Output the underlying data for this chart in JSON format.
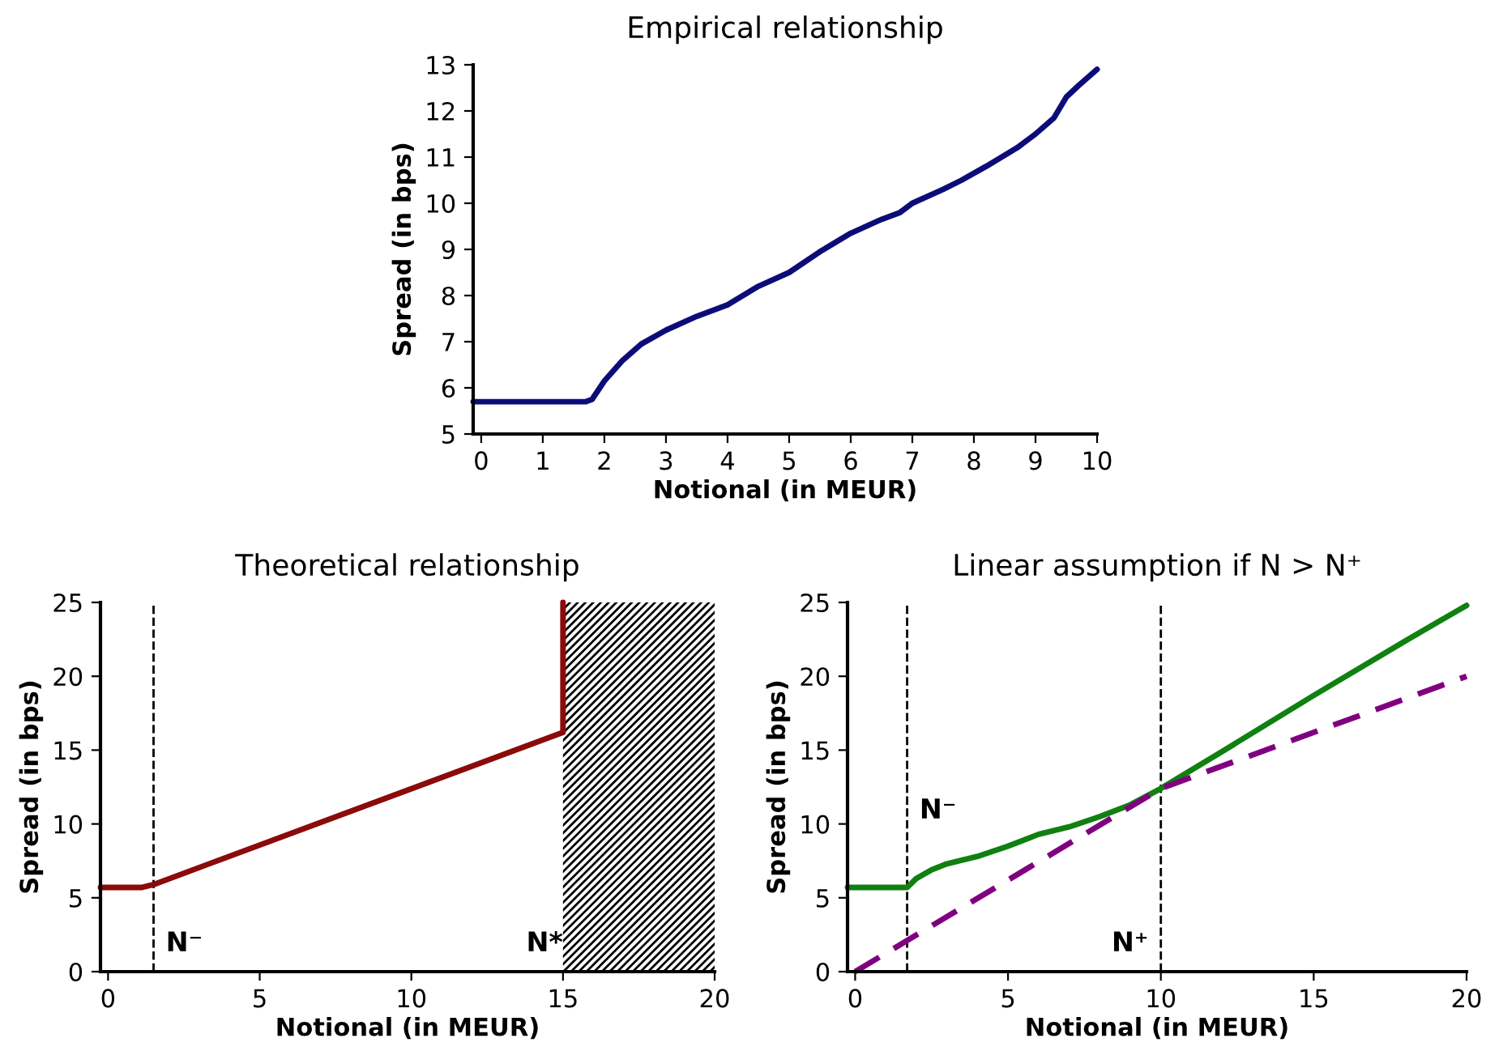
{
  "chart_data": [
    {
      "type": "line",
      "title": "Empirical relationship",
      "xlabel": "Notional (in MEUR)",
      "ylabel": "Spread (in bps)",
      "xlim": [
        -0.13,
        10
      ],
      "xticks": [
        0,
        1,
        2,
        3,
        4,
        5,
        6,
        7,
        8,
        9,
        10
      ],
      "ylim": [
        5,
        13
      ],
      "yticks": [
        5,
        6,
        7,
        8,
        9,
        10,
        11,
        12,
        13
      ],
      "grid": false,
      "series": [
        {
          "color": "#0c0c78",
          "x": [
            -0.13,
            1.7,
            1.8,
            2,
            2.3,
            2.6,
            3,
            3.5,
            4,
            4.5,
            5,
            5.5,
            6,
            6.5,
            6.8,
            7,
            7.5,
            7.8,
            8.2,
            8.7,
            9,
            9.3,
            9.5,
            9.7,
            10
          ],
          "values": [
            5.7,
            5.7,
            5.75,
            6.15,
            6.6,
            6.95,
            7.25,
            7.55,
            7.8,
            8.2,
            8.5,
            8.95,
            9.35,
            9.65,
            9.8,
            10.0,
            10.3,
            10.5,
            10.8,
            11.2,
            11.5,
            11.85,
            12.3,
            12.55,
            12.9
          ]
        }
      ]
    },
    {
      "type": "line",
      "title": "Theoretical relationship",
      "xlabel": "Notional (in MEUR)",
      "ylabel": "Spread (in bps)",
      "xlim": [
        -0.25,
        20
      ],
      "xticks": [
        0,
        5,
        10,
        15,
        20
      ],
      "ylim": [
        0,
        25
      ],
      "yticks": [
        0,
        5,
        10,
        15,
        20,
        25
      ],
      "grid": false,
      "ref_lines": [
        {
          "axis": "x",
          "value": 1.5,
          "label": "N⁻",
          "color": "#000000",
          "line_style": "dashed"
        }
      ],
      "bands": [
        {
          "axis": "x",
          "from": 15,
          "to": 20,
          "label": "N*",
          "color": "#000000"
        }
      ],
      "series": [
        {
          "color": "#8b0a0a",
          "x": [
            -0.25,
            1.1,
            1.5,
            15,
            15
          ],
          "values": [
            5.7,
            5.7,
            5.9,
            16.2,
            25
          ]
        }
      ]
    },
    {
      "type": "line",
      "title": "Linear assumption if N > N⁺",
      "xlabel": "Notional (in MEUR)",
      "ylabel": "Spread (in bps)",
      "xlim": [
        -0.25,
        20
      ],
      "xticks": [
        0,
        5,
        10,
        15,
        20
      ],
      "ylim": [
        0,
        25
      ],
      "yticks": [
        0,
        5,
        10,
        15,
        20,
        25
      ],
      "grid": false,
      "ref_lines": [
        {
          "axis": "x",
          "value": 1.7,
          "label": "N⁻",
          "color": "#000000",
          "line_style": "dashed"
        },
        {
          "axis": "x",
          "value": 10,
          "label": "N⁺",
          "color": "#000000",
          "line_style": "dashed"
        }
      ],
      "series": [
        {
          "color": "#108010",
          "x": [
            -0.25,
            1.7,
            2,
            2.5,
            3,
            4,
            5,
            6,
            7,
            8,
            9,
            10,
            12,
            15,
            18,
            20
          ],
          "values": [
            5.7,
            5.7,
            6.3,
            6.9,
            7.3,
            7.8,
            8.5,
            9.3,
            9.8,
            10.5,
            11.3,
            12.4,
            14.9,
            18.7,
            22.4,
            24.8
          ]
        },
        {
          "color": "#800080",
          "line_style": "dashed",
          "x": [
            0,
            10,
            20
          ],
          "values": [
            0,
            12.4,
            20
          ]
        }
      ]
    }
  ]
}
